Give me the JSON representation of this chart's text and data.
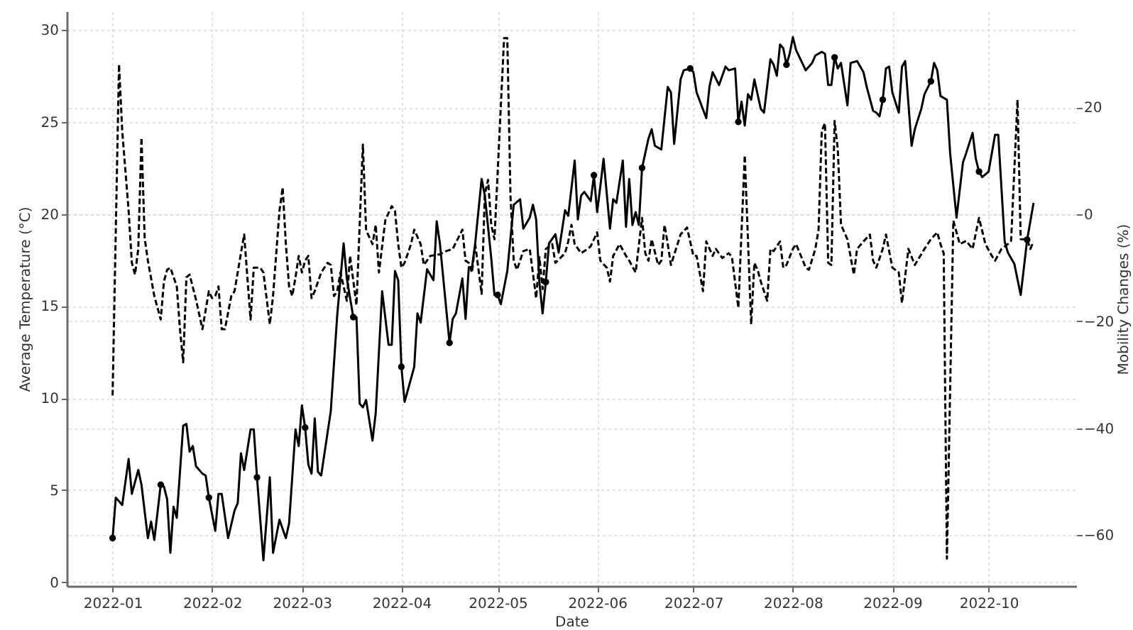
{
  "chart_data": {
    "type": "line",
    "xlabel": "Date",
    "ylabel": "Average Temperature (°C)",
    "y2label": "Mobility Changes (%)",
    "xlim": [
      "2021-12-17T17:00",
      "2022-10-28T07:00"
    ],
    "xticks": [
      "2022-01",
      "2022-02",
      "2022-03",
      "2022-04",
      "2022-05",
      "2022-06",
      "2022-07",
      "2022-08",
      "2022-09",
      "2022-10"
    ],
    "ylim": [
      -0.2,
      31.0
    ],
    "yticks": [
      0,
      5,
      10,
      15,
      20,
      25,
      30
    ],
    "y2lim": [
      -69.5,
      37.9
    ],
    "y2ticks": [
      {
        "value": -60,
        "label": "−60"
      },
      {
        "value": -40,
        "label": "−40"
      },
      {
        "value": -20,
        "label": "−20"
      },
      0,
      20
    ],
    "grid": true,
    "series": [
      {
        "color": "#000000",
        "line_style": "solid",
        "x": [
          "2022-01-01",
          "2022-01-02",
          "2022-01-04",
          "2022-01-06",
          "2022-01-07",
          "2022-01-09",
          "2022-01-10",
          "2022-01-12",
          "2022-01-13",
          "2022-01-14",
          "2022-01-16",
          "2022-01-17",
          "2022-01-18",
          "2022-01-19",
          "2022-01-20",
          "2022-01-21",
          "2022-01-23",
          "2022-01-24",
          "2022-01-25",
          "2022-01-26",
          "2022-01-27",
          "2022-01-29",
          "2022-01-30",
          "2022-01-31",
          "2022-02-02",
          "2022-02-03",
          "2022-02-04",
          "2022-02-05",
          "2022-02-06",
          "2022-02-08",
          "2022-02-09",
          "2022-02-10",
          "2022-02-11",
          "2022-02-13",
          "2022-02-14",
          "2022-02-15",
          "2022-02-17",
          "2022-02-19",
          "2022-02-20",
          "2022-02-22",
          "2022-02-24",
          "2022-02-25",
          "2022-02-27",
          "2022-02-28",
          "2022-03-01",
          "2022-03-02",
          "2022-03-03",
          "2022-03-04",
          "2022-03-05",
          "2022-03-06",
          "2022-03-07",
          "2022-03-10",
          "2022-03-12",
          "2022-03-14",
          "2022-03-15",
          "2022-03-17",
          "2022-03-18",
          "2022-03-19",
          "2022-03-20",
          "2022-03-21",
          "2022-03-23",
          "2022-03-24",
          "2022-03-26",
          "2022-03-28",
          "2022-03-29",
          "2022-03-30",
          "2022-03-31",
          "2022-04-01",
          "2022-04-02",
          "2022-04-05",
          "2022-04-06",
          "2022-04-07",
          "2022-04-09",
          "2022-04-11",
          "2022-04-12",
          "2022-04-13",
          "2022-04-16",
          "2022-04-17",
          "2022-04-18",
          "2022-04-20",
          "2022-04-21",
          "2022-04-22",
          "2022-04-23",
          "2022-04-24",
          "2022-04-26",
          "2022-04-27",
          "2022-04-29",
          "2022-04-30",
          "2022-05-01",
          "2022-05-02",
          "2022-05-04",
          "2022-05-06",
          "2022-05-08",
          "2022-05-09",
          "2022-05-11",
          "2022-05-12",
          "2022-05-13",
          "2022-05-14",
          "2022-05-15",
          "2022-05-16",
          "2022-05-17",
          "2022-05-19",
          "2022-05-20",
          "2022-05-22",
          "2022-05-23",
          "2022-05-25",
          "2022-05-26",
          "2022-05-27",
          "2022-05-28",
          "2022-05-30",
          "2022-05-31",
          "2022-06-01",
          "2022-06-02",
          "2022-06-03",
          "2022-06-05",
          "2022-06-06",
          "2022-06-07",
          "2022-06-09",
          "2022-06-10",
          "2022-06-11",
          "2022-06-12",
          "2022-06-13",
          "2022-06-14",
          "2022-06-15",
          "2022-06-17",
          "2022-06-18",
          "2022-06-19",
          "2022-06-21",
          "2022-06-23",
          "2022-06-24",
          "2022-06-25",
          "2022-06-27",
          "2022-06-28",
          "2022-06-30",
          "2022-07-01",
          "2022-07-02",
          "2022-07-05",
          "2022-07-06",
          "2022-07-07",
          "2022-07-09",
          "2022-07-11",
          "2022-07-12",
          "2022-07-14",
          "2022-07-15",
          "2022-07-16",
          "2022-07-17",
          "2022-07-18",
          "2022-07-19",
          "2022-07-20",
          "2022-07-22",
          "2022-07-23",
          "2022-07-25",
          "2022-07-26",
          "2022-07-27",
          "2022-07-28",
          "2022-07-29",
          "2022-07-30",
          "2022-07-31",
          "2022-08-01",
          "2022-08-02",
          "2022-08-05",
          "2022-08-07",
          "2022-08-08",
          "2022-08-10",
          "2022-08-11",
          "2022-08-12",
          "2022-08-13",
          "2022-08-14",
          "2022-08-15",
          "2022-08-16",
          "2022-08-18",
          "2022-08-19",
          "2022-08-21",
          "2022-08-23",
          "2022-08-24",
          "2022-08-26",
          "2022-08-27",
          "2022-08-28",
          "2022-08-29",
          "2022-08-30",
          "2022-08-31",
          "2022-09-01",
          "2022-09-03",
          "2022-09-04",
          "2022-09-05",
          "2022-09-07",
          "2022-09-08",
          "2022-09-10",
          "2022-09-11",
          "2022-09-13",
          "2022-09-14",
          "2022-09-15",
          "2022-09-16",
          "2022-09-18",
          "2022-09-19",
          "2022-09-21",
          "2022-09-23",
          "2022-09-24",
          "2022-09-26",
          "2022-09-27",
          "2022-09-28",
          "2022-09-29",
          "2022-10-01",
          "2022-10-03",
          "2022-10-04",
          "2022-10-06",
          "2022-10-07",
          "2022-10-09",
          "2022-10-11",
          "2022-10-13",
          "2022-10-15"
        ],
        "values": [
          2.4,
          4.6,
          4.2,
          6.7,
          4.8,
          6.1,
          5.3,
          2.4,
          3.3,
          2.3,
          5.3,
          5.2,
          4.5,
          1.6,
          4.1,
          3.5,
          8.5,
          8.6,
          7.1,
          7.4,
          6.3,
          5.9,
          5.8,
          4.6,
          2.8,
          4.8,
          4.8,
          3.6,
          2.4,
          3.9,
          4.3,
          7.0,
          6.1,
          8.3,
          8.3,
          5.7,
          1.2,
          5.7,
          1.6,
          3.4,
          2.4,
          3.2,
          8.3,
          7.4,
          9.6,
          8.4,
          6.4,
          5.9,
          8.9,
          6.0,
          5.8,
          9.3,
          14.5,
          18.4,
          16.5,
          14.4,
          14.4,
          9.7,
          9.5,
          9.9,
          7.7,
          9.2,
          15.8,
          12.9,
          12.9,
          16.9,
          16.4,
          11.7,
          9.8,
          11.7,
          14.6,
          14.1,
          17.0,
          16.4,
          19.6,
          18.4,
          13.0,
          14.3,
          14.6,
          16.5,
          14.3,
          17.1,
          17.1,
          18.4,
          21.9,
          21.0,
          17.6,
          15.6,
          15.6,
          15.1,
          16.9,
          20.5,
          20.8,
          19.2,
          19.8,
          20.5,
          19.7,
          16.3,
          14.6,
          16.3,
          18.4,
          18.9,
          17.9,
          20.2,
          19.9,
          22.9,
          19.7,
          21.0,
          21.2,
          20.7,
          22.1,
          20.1,
          21.5,
          23.0,
          19.2,
          20.8,
          20.6,
          22.9,
          19.3,
          21.9,
          19.4,
          20.1,
          19.4,
          22.5,
          24.1,
          24.6,
          23.7,
          23.5,
          26.9,
          26.6,
          23.8,
          27.3,
          27.8,
          27.9,
          27.7,
          26.6,
          25.2,
          26.9,
          27.7,
          27.0,
          28.0,
          27.8,
          27.9,
          25.0,
          26.1,
          24.8,
          26.5,
          26.2,
          27.3,
          25.7,
          25.5,
          28.4,
          28.1,
          27.5,
          29.2,
          29.0,
          28.1,
          28.7,
          29.6,
          28.9,
          27.8,
          28.2,
          28.6,
          28.8,
          28.7,
          27.0,
          27.0,
          28.5,
          27.9,
          28.2,
          25.9,
          28.2,
          28.3,
          27.7,
          26.9,
          25.6,
          25.5,
          25.3,
          26.2,
          27.9,
          28.0,
          26.6,
          25.5,
          28.0,
          28.3,
          23.7,
          24.6,
          25.7,
          26.5,
          27.2,
          28.2,
          27.8,
          26.4,
          26.2,
          23.3,
          19.8,
          22.8,
          23.3,
          24.4,
          23.0,
          22.3,
          22.0,
          22.3,
          24.3,
          24.3,
          18.5,
          17.9,
          17.3,
          15.6,
          18.6,
          20.6
        ]
      },
      {
        "color": "#000000",
        "line_style": "dashed",
        "axis": "y2",
        "x": [
          "2022-01-01",
          "2022-01-03",
          "2022-01-04",
          "2022-01-06",
          "2022-01-07",
          "2022-01-08",
          "2022-01-09",
          "2022-01-10",
          "2022-01-11",
          "2022-01-12",
          "2022-01-14",
          "2022-01-16",
          "2022-01-17",
          "2022-01-18",
          "2022-01-19",
          "2022-01-21",
          "2022-01-22",
          "2022-01-23",
          "2022-01-24",
          "2022-01-25",
          "2022-01-27",
          "2022-01-29",
          "2022-01-31",
          "2022-02-01",
          "2022-02-02",
          "2022-02-03",
          "2022-02-04",
          "2022-02-05",
          "2022-02-07",
          "2022-02-08",
          "2022-02-10",
          "2022-02-11",
          "2022-02-12",
          "2022-02-13",
          "2022-02-14",
          "2022-02-16",
          "2022-02-17",
          "2022-02-19",
          "2022-02-20",
          "2022-02-22",
          "2022-02-23",
          "2022-02-24",
          "2022-02-25",
          "2022-02-26",
          "2022-02-27",
          "2022-02-28",
          "2022-03-01",
          "2022-03-02",
          "2022-03-03",
          "2022-03-04",
          "2022-03-05",
          "2022-03-07",
          "2022-03-09",
          "2022-03-10",
          "2022-03-11",
          "2022-03-12",
          "2022-03-13",
          "2022-03-14",
          "2022-03-15",
          "2022-03-16",
          "2022-03-18",
          "2022-03-20",
          "2022-03-21",
          "2022-03-23",
          "2022-03-24",
          "2022-03-25",
          "2022-03-27",
          "2022-03-29",
          "2022-03-30",
          "2022-03-31",
          "2022-04-01",
          "2022-04-02",
          "2022-04-04",
          "2022-04-05",
          "2022-04-07",
          "2022-04-08",
          "2022-04-10",
          "2022-04-13",
          "2022-04-15",
          "2022-04-17",
          "2022-04-20",
          "2022-04-21",
          "2022-04-22",
          "2022-04-23",
          "2022-04-24",
          "2022-04-26",
          "2022-04-27",
          "2022-04-28",
          "2022-04-29",
          "2022-04-30",
          "2022-05-03",
          "2022-05-04",
          "2022-05-05",
          "2022-05-06",
          "2022-05-07",
          "2022-05-09",
          "2022-05-11",
          "2022-05-13",
          "2022-05-14",
          "2022-05-15",
          "2022-05-16",
          "2022-05-18",
          "2022-05-19",
          "2022-05-22",
          "2022-05-23",
          "2022-05-24",
          "2022-05-25",
          "2022-05-27",
          "2022-05-29",
          "2022-05-30",
          "2022-06-01",
          "2022-06-02",
          "2022-06-04",
          "2022-06-05",
          "2022-06-06",
          "2022-06-08",
          "2022-06-10",
          "2022-06-11",
          "2022-06-13",
          "2022-06-15",
          "2022-06-16",
          "2022-06-17",
          "2022-06-18",
          "2022-06-20",
          "2022-06-21",
          "2022-06-22",
          "2022-06-23",
          "2022-06-24",
          "2022-06-27",
          "2022-06-29",
          "2022-07-01",
          "2022-07-02",
          "2022-07-04",
          "2022-07-05",
          "2022-07-07",
          "2022-07-08",
          "2022-07-10",
          "2022-07-12",
          "2022-07-13",
          "2022-07-15",
          "2022-07-17",
          "2022-07-19",
          "2022-07-20",
          "2022-07-21",
          "2022-07-22",
          "2022-07-24",
          "2022-07-25",
          "2022-07-26",
          "2022-07-28",
          "2022-07-29",
          "2022-07-30",
          "2022-08-01",
          "2022-08-02",
          "2022-08-05",
          "2022-08-06",
          "2022-08-08",
          "2022-08-09",
          "2022-08-10",
          "2022-08-11",
          "2022-08-12",
          "2022-08-13",
          "2022-08-14",
          "2022-08-15",
          "2022-08-16",
          "2022-08-18",
          "2022-08-20",
          "2022-08-21",
          "2022-08-23",
          "2022-08-25",
          "2022-08-26",
          "2022-08-27",
          "2022-08-29",
          "2022-08-30",
          "2022-09-01",
          "2022-09-03",
          "2022-09-04",
          "2022-09-06",
          "2022-09-08",
          "2022-09-11",
          "2022-09-13",
          "2022-09-15",
          "2022-09-16",
          "2022-09-17",
          "2022-09-18",
          "2022-09-20",
          "2022-09-22",
          "2022-09-24",
          "2022-09-26",
          "2022-09-28",
          "2022-09-30",
          "2022-10-02",
          "2022-10-03",
          "2022-10-05",
          "2022-10-07",
          "2022-10-08",
          "2022-10-10",
          "2022-10-11",
          "2022-10-13",
          "2022-10-14",
          "2022-10-15"
        ],
        "values": [
          -33.9,
          28.0,
          15.6,
          0.6,
          -9.1,
          -11.3,
          -6.5,
          14.3,
          -4.5,
          -8.7,
          -15.3,
          -19.7,
          -12.6,
          -10.4,
          -10.0,
          -13.5,
          -21.5,
          -27.7,
          -11.8,
          -11.3,
          -16.0,
          -21.5,
          -14.4,
          -15.7,
          -15.3,
          -13.5,
          -21.5,
          -21.5,
          -15.3,
          -14.4,
          -7.3,
          -3.8,
          -11.8,
          -19.7,
          -10.0,
          -10.0,
          -10.9,
          -20.6,
          -15.3,
          0.6,
          5.0,
          -5.6,
          -13.5,
          -15.3,
          -11.8,
          -7.8,
          -10.9,
          -8.7,
          -7.8,
          -15.7,
          -14.4,
          -10.9,
          -9.1,
          -9.5,
          -15.3,
          -14.4,
          -10.9,
          -13.5,
          -16.2,
          -7.8,
          -17.0,
          13.0,
          -3.0,
          -5.6,
          -2.0,
          -10.9,
          -1.1,
          1.5,
          0.6,
          -5.6,
          -10.0,
          -9.1,
          -5.6,
          -2.9,
          -5.6,
          -9.5,
          -7.8,
          -7.5,
          -6.9,
          -6.5,
          -2.9,
          -8.7,
          -9.1,
          -10.9,
          -5.6,
          -14.9,
          3.7,
          6.4,
          -2.0,
          -4.7,
          32.9,
          32.9,
          3.3,
          -8.7,
          -10.4,
          -6.9,
          -6.5,
          -15.7,
          -8.0,
          -14.0,
          -6.5,
          -5.6,
          -9.1,
          -7.3,
          -5.1,
          -2.0,
          -5.6,
          -7.3,
          -6.5,
          -6.0,
          -3.4,
          -8.7,
          -10.0,
          -12.6,
          -7.8,
          -5.6,
          -7.8,
          -8.7,
          -10.9,
          -0.7,
          -7.3,
          -8.7,
          -4.7,
          -9.5,
          -8.7,
          -2.0,
          -5.6,
          -9.5,
          -3.8,
          -2.5,
          -7.8,
          -7.8,
          -14.4,
          -5.1,
          -7.8,
          -6.5,
          -8.2,
          -7.3,
          -8.0,
          -17.5,
          11.0,
          -20.6,
          -9.1,
          -10.4,
          -12.6,
          -16.2,
          -6.5,
          -6.9,
          -5.1,
          -10.0,
          -9.5,
          -6.5,
          -5.6,
          -10.0,
          -10.4,
          -6.5,
          -2.9,
          15.6,
          17.0,
          -9.1,
          -9.5,
          17.4,
          12.1,
          -2.0,
          -4.7,
          -11.3,
          -6.5,
          -5.1,
          -3.8,
          -8.7,
          -10.0,
          -6.5,
          -3.8,
          -10.0,
          -10.9,
          -16.6,
          -6.5,
          -9.5,
          -6.5,
          -4.7,
          -3.4,
          -5.6,
          -7.3,
          -64.4,
          -1.2,
          -5.6,
          -5.0,
          -6.5,
          -0.7,
          -5.6,
          -7.8,
          -8.7,
          -6.5,
          -5.6,
          -5.0,
          21.4,
          -4.7,
          -4.7,
          -6.5,
          -5.1
        ]
      },
      {
        "type": "scatter",
        "color": "#000000",
        "marker": "circle",
        "x": [
          "2022-01-01",
          "2022-01-16",
          "2022-01-31",
          "2022-02-15",
          "2022-03-02",
          "2022-03-17",
          "2022-04-01",
          "2022-04-16",
          "2022-05-01",
          "2022-05-16",
          "2022-05-31",
          "2022-06-15",
          "2022-06-30",
          "2022-07-15",
          "2022-07-30",
          "2022-08-14",
          "2022-08-29",
          "2022-09-13",
          "2022-09-28",
          "2022-10-13"
        ],
        "values": [
          2.4,
          5.3,
          4.6,
          5.7,
          8.4,
          14.4,
          11.7,
          13.0,
          15.6,
          16.3,
          22.1,
          22.5,
          27.9,
          25.0,
          28.1,
          28.5,
          26.2,
          27.2,
          22.3,
          18.6
        ]
      }
    ]
  }
}
